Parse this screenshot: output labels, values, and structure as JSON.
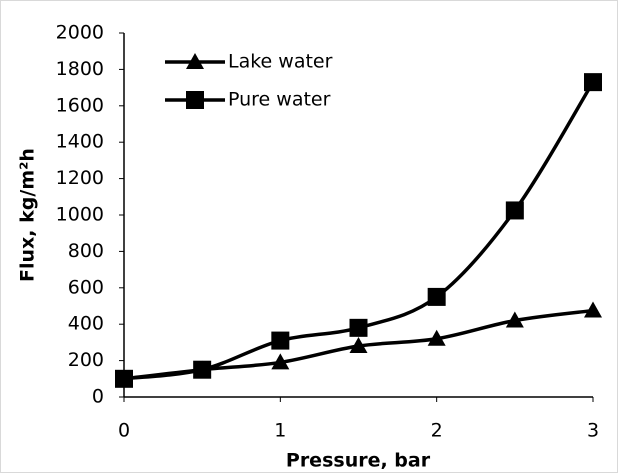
{
  "chart_data": {
    "type": "line",
    "x": [
      0,
      0.5,
      1,
      1.5,
      2,
      2.5,
      3
    ],
    "series": [
      {
        "name": "Lake water",
        "color": "#000000",
        "marker": "triangle",
        "values": [
          100,
          150,
          190,
          280,
          320,
          420,
          475
        ]
      },
      {
        "name": "Pure water",
        "color": "#000000",
        "marker": "square",
        "values": [
          100,
          150,
          310,
          380,
          550,
          1025,
          1730
        ]
      }
    ],
    "xlabel": "Pressure, bar",
    "ylabel": "Flux, kg/m²h",
    "xlim": [
      0,
      3
    ],
    "xticks": [
      0,
      1,
      2,
      3
    ],
    "ylim": [
      0,
      2000
    ],
    "yticks": [
      0,
      200,
      400,
      600,
      800,
      1000,
      1200,
      1400,
      1600,
      1800,
      2000
    ],
    "smooth": true,
    "grid": false,
    "legend": "upper left"
  }
}
